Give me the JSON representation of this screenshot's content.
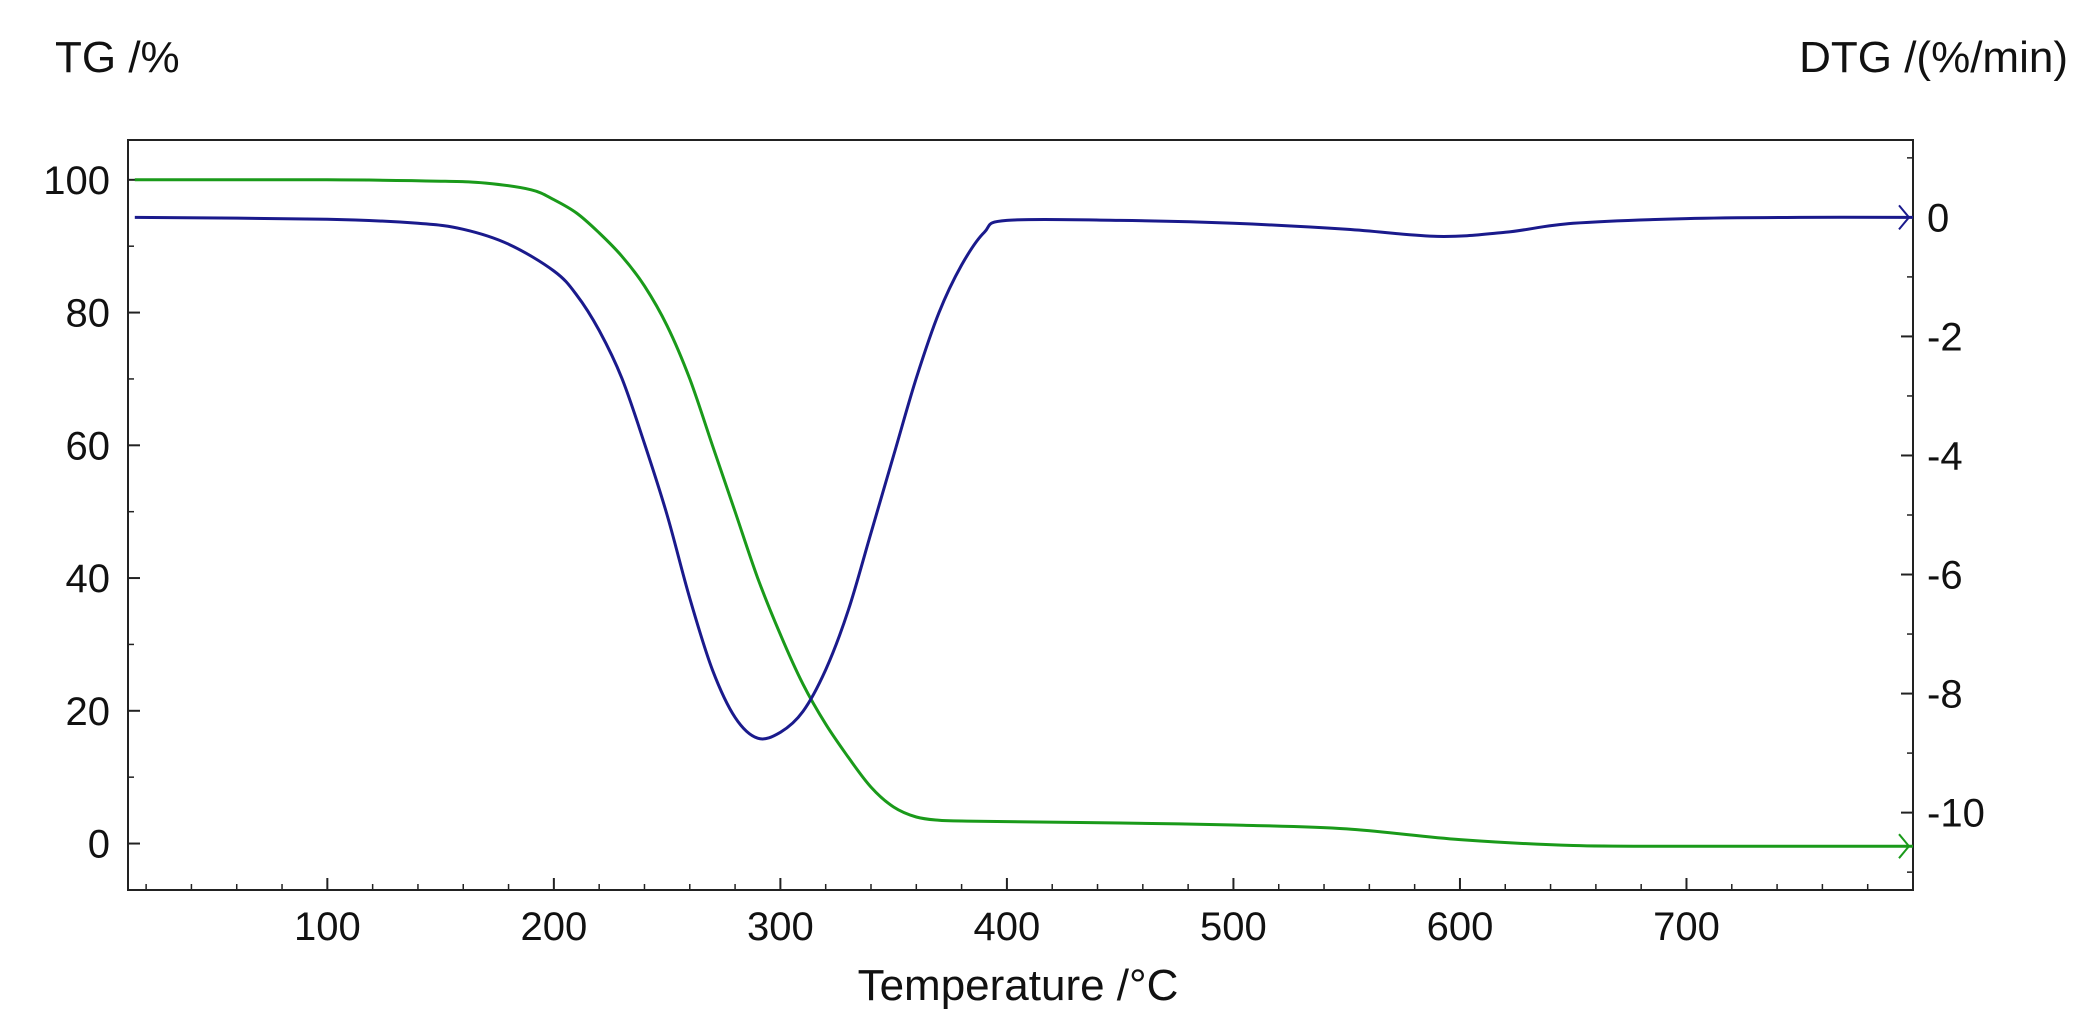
{
  "chart_data": {
    "type": "line",
    "title": "",
    "xlabel": "Temperature /°C",
    "ylabel_left": "TG /%",
    "ylabel_right": "DTG /(%/min)",
    "xlim": [
      12,
      800
    ],
    "ylim_left": [
      -7,
      106
    ],
    "ylim_right": [
      -11.3,
      1.3
    ],
    "x_ticks": [
      100,
      200,
      300,
      400,
      500,
      600,
      700
    ],
    "y_ticks_left": [
      0,
      20,
      40,
      60,
      80,
      100
    ],
    "y_ticks_right": [
      0,
      -2,
      -4,
      -6,
      -8,
      -10
    ],
    "grid": false,
    "legend": "none",
    "series": [
      {
        "axis": "left",
        "color": "#1a9a1a",
        "x": [
          15,
          100,
          150,
          170,
          190,
          200,
          210,
          220,
          230,
          240,
          250,
          260,
          270,
          280,
          290,
          300,
          310,
          320,
          330,
          340,
          350,
          360,
          370,
          380,
          400,
          450,
          500,
          550,
          600,
          650,
          700,
          750,
          800
        ],
        "y": [
          100,
          100,
          99.8,
          99.5,
          98.5,
          97,
          95,
          92,
          88.5,
          84,
          78,
          70,
          60,
          50,
          40,
          31.5,
          24,
          18,
          13,
          8.5,
          5.5,
          4,
          3.5,
          3.4,
          3.3,
          3.1,
          2.8,
          2.2,
          0.6,
          -0.3,
          -0.4,
          -0.4,
          -0.4
        ]
      },
      {
        "axis": "right",
        "color": "#1a1a8c",
        "x": [
          15,
          100,
          140,
          160,
          180,
          200,
          210,
          220,
          230,
          240,
          250,
          260,
          270,
          280,
          290,
          300,
          310,
          320,
          330,
          340,
          350,
          360,
          370,
          380,
          390,
          400,
          450,
          500,
          550,
          590,
          620,
          650,
          700,
          750,
          800
        ],
        "y": [
          0,
          -0.03,
          -0.1,
          -0.2,
          -0.45,
          -0.9,
          -1.3,
          -1.9,
          -2.7,
          -3.8,
          -5.0,
          -6.4,
          -7.6,
          -8.4,
          -8.75,
          -8.65,
          -8.3,
          -7.6,
          -6.6,
          -5.3,
          -4.0,
          -2.7,
          -1.6,
          -0.8,
          -0.25,
          -0.05,
          -0.05,
          -0.1,
          -0.2,
          -0.32,
          -0.25,
          -0.1,
          -0.02,
          0,
          0
        ]
      }
    ]
  }
}
